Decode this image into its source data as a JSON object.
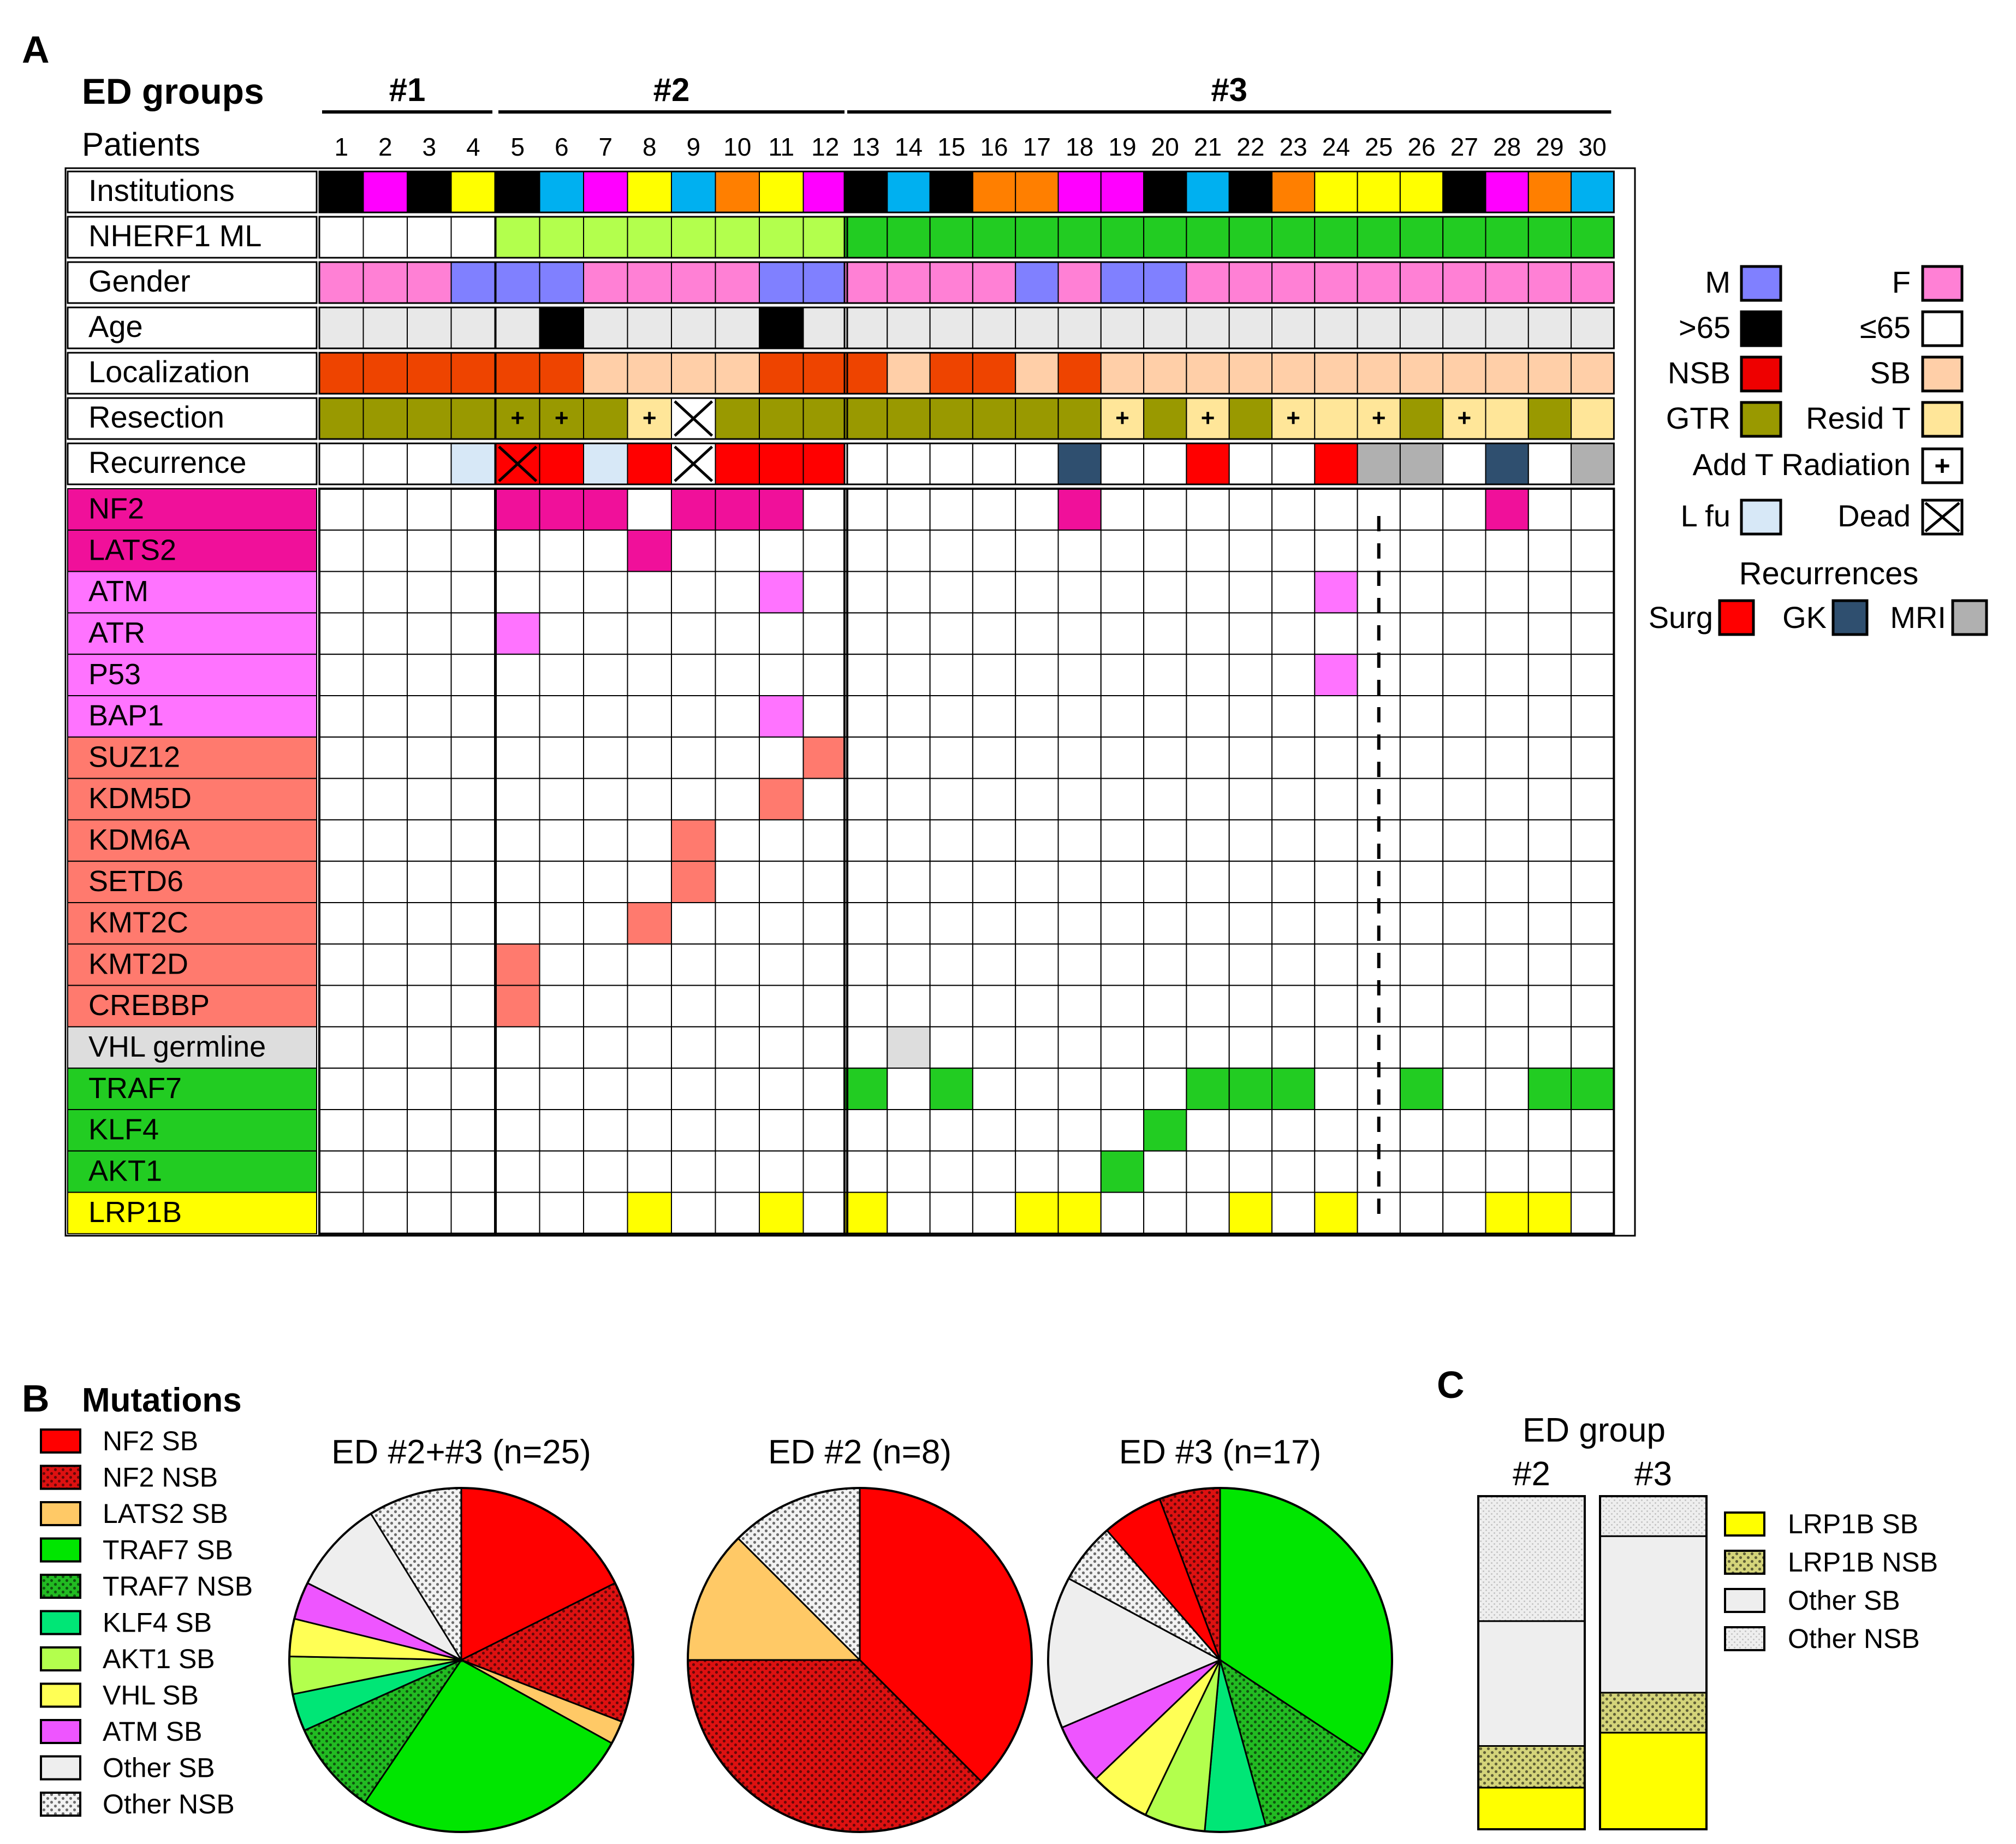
{
  "colors": {
    "black": "#000000",
    "magenta": "#ff00ff",
    "yellow": "#ffff00",
    "cyan": "#00b0f0",
    "orange": "#ff7f00",
    "white": "#ffffff",
    "nherf_light": "#b3ff4d",
    "nherf_green": "#22cc22",
    "male": "#8080ff",
    "female": "#ff80d5",
    "age_gt65": "#000000",
    "age_le65": "#e8e8e8",
    "nsb": "#ee4400",
    "sb": "#ffcfa8",
    "gtr": "#999900",
    "resid": "#ffe699",
    "lfu": "#d7e8f7",
    "surg": "#ff0000",
    "gk": "#2f4f6f",
    "mri": "#b0b0b0",
    "gene_hippo": "#f0109a",
    "gene_dna": "#ff73ff",
    "gene_chrom": "#ff7a6e",
    "gene_vhl": "#dddddd",
    "gene_traf": "#22cc22",
    "gene_lrp": "#ffff00",
    "legend_surg": "#ff0000",
    "legend_nsb": "#ee0000"
  },
  "panelA": {
    "label": "A",
    "ed_groups_title": "ED groups",
    "patients_title": "Patients",
    "groups": [
      {
        "name": "#1",
        "from": 1,
        "to": 4
      },
      {
        "name": "#2",
        "from": 5,
        "to": 12
      },
      {
        "name": "#3",
        "from": 13,
        "to": 30
      }
    ],
    "patients": [
      "1",
      "2",
      "3",
      "4",
      "5",
      "6",
      "7",
      "8",
      "9",
      "10",
      "11",
      "12",
      "13",
      "14",
      "15",
      "16",
      "17",
      "18",
      "19",
      "20",
      "21",
      "22",
      "23",
      "24",
      "25",
      "26",
      "27",
      "28",
      "29",
      "30"
    ],
    "rows": [
      {
        "label": "Institutions",
        "cells": [
          "black",
          "magenta",
          "black",
          "yellow",
          "black",
          "cyan",
          "magenta",
          "yellow",
          "cyan",
          "orange",
          "yellow",
          "magenta",
          "black",
          "cyan",
          "black",
          "orange",
          "orange",
          "magenta",
          "magenta",
          "black",
          "cyan",
          "black",
          "orange",
          "yellow",
          "yellow",
          "yellow",
          "black",
          "magenta",
          "orange",
          "cyan"
        ]
      },
      {
        "label": "NHERF1 ML",
        "cells": [
          "white",
          "white",
          "white",
          "white",
          "nherf_light",
          "nherf_light",
          "nherf_light",
          "nherf_light",
          "nherf_light",
          "nherf_light",
          "nherf_light",
          "nherf_light",
          "nherf_green",
          "nherf_green",
          "nherf_green",
          "nherf_green",
          "nherf_green",
          "nherf_green",
          "nherf_green",
          "nherf_green",
          "nherf_green",
          "nherf_green",
          "nherf_green",
          "nherf_green",
          "nherf_green",
          "nherf_green",
          "nherf_green",
          "nherf_green",
          "nherf_green",
          "nherf_green"
        ]
      },
      {
        "label": "Gender",
        "cells": [
          "female",
          "female",
          "female",
          "male",
          "male",
          "male",
          "female",
          "female",
          "female",
          "female",
          "male",
          "male",
          "female",
          "female",
          "female",
          "female",
          "male",
          "female",
          "male",
          "male",
          "female",
          "female",
          "female",
          "female",
          "female",
          "female",
          "female",
          "female",
          "female",
          "female"
        ]
      },
      {
        "label": "Age",
        "cells": [
          "age_le65",
          "age_le65",
          "age_le65",
          "age_le65",
          "age_le65",
          "age_gt65",
          "age_le65",
          "age_le65",
          "age_le65",
          "age_le65",
          "age_gt65",
          "age_le65",
          "age_le65",
          "age_le65",
          "age_le65",
          "age_le65",
          "age_le65",
          "age_le65",
          "age_le65",
          "age_le65",
          "age_le65",
          "age_le65",
          "age_le65",
          "age_le65",
          "age_le65",
          "age_le65",
          "age_le65",
          "age_le65",
          "age_le65",
          "age_le65"
        ]
      },
      {
        "label": "Localization",
        "cells": [
          "nsb",
          "nsb",
          "nsb",
          "nsb",
          "nsb",
          "nsb",
          "sb",
          "sb",
          "sb",
          "sb",
          "nsb",
          "nsb",
          "nsb",
          "sb",
          "nsb",
          "nsb",
          "sb",
          "nsb",
          "sb",
          "sb",
          "sb",
          "sb",
          "sb",
          "sb",
          "sb",
          "sb",
          "sb",
          "sb",
          "sb",
          "sb"
        ]
      },
      {
        "label": "Resection",
        "cells": [
          "gtr",
          "gtr",
          "gtr",
          "gtr",
          "gtr",
          "gtr",
          "gtr",
          "resid",
          "white",
          "gtr",
          "gtr",
          "gtr",
          "gtr",
          "gtr",
          "gtr",
          "gtr",
          "gtr",
          "gtr",
          "resid",
          "gtr",
          "resid",
          "gtr",
          "resid",
          "resid",
          "resid",
          "gtr",
          "resid",
          "resid",
          "gtr",
          "resid"
        ],
        "plus": [
          5,
          6,
          8,
          19,
          21,
          23,
          25,
          27
        ],
        "dead": [
          9
        ]
      },
      {
        "label": "Recurrence",
        "cells": [
          "white",
          "white",
          "white",
          "lfu",
          "surg",
          "surg",
          "lfu",
          "surg",
          "white",
          "surg",
          "surg",
          "surg",
          "white",
          "white",
          "white",
          "white",
          "white",
          "gk",
          "white",
          "white",
          "surg",
          "white",
          "white",
          "surg",
          "mri",
          "mri",
          "white",
          "gk",
          "white",
          "mri"
        ],
        "dead": [
          5,
          9
        ]
      }
    ],
    "genes": [
      {
        "label": "NF2",
        "color": "gene_hippo",
        "mut": [
          5,
          6,
          7,
          9,
          10,
          11,
          18,
          28
        ]
      },
      {
        "label": "LATS2",
        "color": "gene_hippo",
        "mut": [
          8
        ]
      },
      {
        "label": "ATM",
        "color": "gene_dna",
        "mut": [
          11,
          24
        ]
      },
      {
        "label": "ATR",
        "color": "gene_dna",
        "mut": [
          5
        ]
      },
      {
        "label": "P53",
        "color": "gene_dna",
        "mut": [
          24
        ]
      },
      {
        "label": "BAP1",
        "color": "gene_dna",
        "mut": [
          11
        ]
      },
      {
        "label": "SUZ12",
        "color": "gene_chrom",
        "mut": [
          12
        ]
      },
      {
        "label": "KDM5D",
        "color": "gene_chrom",
        "mut": [
          11
        ]
      },
      {
        "label": "KDM6A",
        "color": "gene_chrom",
        "mut": [
          9
        ]
      },
      {
        "label": "SETD6",
        "color": "gene_chrom",
        "mut": [
          9
        ]
      },
      {
        "label": "KMT2C",
        "color": "gene_chrom",
        "mut": [
          8
        ]
      },
      {
        "label": "KMT2D",
        "color": "gene_chrom",
        "mut": [
          5
        ]
      },
      {
        "label": "CREBBP",
        "color": "gene_chrom",
        "mut": [
          5
        ]
      },
      {
        "label": "VHL germline",
        "color": "gene_vhl",
        "mut": [
          14
        ]
      },
      {
        "label": "TRAF7",
        "color": "gene_traf",
        "mut": [
          13,
          15,
          21,
          22,
          23,
          26,
          29,
          30
        ]
      },
      {
        "label": "KLF4",
        "color": "gene_traf",
        "mut": [
          20
        ]
      },
      {
        "label": "AKT1",
        "color": "gene_traf",
        "mut": [
          19
        ]
      },
      {
        "label": "LRP1B",
        "color": "gene_lrp",
        "mut": [
          8,
          11,
          13,
          17,
          18,
          22,
          24,
          28,
          29
        ]
      }
    ],
    "legend": {
      "pairs": [
        {
          "l": "M",
          "lc": "male",
          "r": "F",
          "rc": "female"
        },
        {
          "l": ">65",
          "lc": "age_gt65",
          "r": "≤65",
          "rc": "white"
        },
        {
          "l": "NSB",
          "lc": "legend_nsb",
          "r": "SB",
          "rc": "sb"
        },
        {
          "l": "GTR",
          "lc": "gtr",
          "r": "Resid T",
          "rc": "resid"
        }
      ],
      "add_t_radiation": "Add T Radiation",
      "lfu": "L fu",
      "dead": "Dead",
      "recurrences_title": "Recurrences",
      "surg": "Surg",
      "gk": "GK",
      "mri": "MRI"
    }
  },
  "chart_data": [
    {
      "type": "pie",
      "panel": "B",
      "title": "ED #2+#3 (n=25)",
      "legend_title": "Mutations",
      "slices": [
        {
          "name": "NF2 SB",
          "value": 4
        },
        {
          "name": "NF2 NSB",
          "value": 3
        },
        {
          "name": "LATS2 SB",
          "value": 0.5
        },
        {
          "name": "TRAF7 SB",
          "value": 6
        },
        {
          "name": "TRAF7 NSB",
          "value": 2
        },
        {
          "name": "KLF4 SB",
          "value": 0.8
        },
        {
          "name": "AKT1 SB",
          "value": 0.8
        },
        {
          "name": "VHL SB",
          "value": 0.8
        },
        {
          "name": "ATM SB",
          "value": 0.8
        },
        {
          "name": "Other SB",
          "value": 2
        },
        {
          "name": "Other NSB",
          "value": 2
        }
      ]
    },
    {
      "type": "pie",
      "panel": "B",
      "title": "ED #2 (n=8)",
      "slices": [
        {
          "name": "NF2 SB",
          "value": 3
        },
        {
          "name": "NF2 NSB",
          "value": 3
        },
        {
          "name": "LATS2 SB",
          "value": 1
        },
        {
          "name": "Other NSB",
          "value": 1
        }
      ]
    },
    {
      "type": "pie",
      "panel": "B",
      "title": "ED #3 (n=17)",
      "slices": [
        {
          "name": "TRAF7 SB",
          "value": 6
        },
        {
          "name": "TRAF7 NSB",
          "value": 2
        },
        {
          "name": "KLF4 SB",
          "value": 1
        },
        {
          "name": "AKT1 SB",
          "value": 1
        },
        {
          "name": "VHL SB",
          "value": 1
        },
        {
          "name": "ATM SB",
          "value": 1
        },
        {
          "name": "Other SB",
          "value": 2.5
        },
        {
          "name": "Other NSB",
          "value": 1
        },
        {
          "name": "NF2 SB",
          "value": 1
        },
        {
          "name": "NF2 NSB",
          "value": 1
        }
      ]
    },
    {
      "type": "bar",
      "panel": "C",
      "title": "ED group",
      "categories": [
        "#2",
        "#3"
      ],
      "stacked": true,
      "ylim": [
        0,
        100
      ],
      "series": [
        {
          "name": "LRP1B SB",
          "values": [
            12.5,
            29
          ]
        },
        {
          "name": "LRP1B NSB",
          "values": [
            12.5,
            12
          ]
        },
        {
          "name": "Other SB",
          "values": [
            37.5,
            47
          ]
        },
        {
          "name": "Other NSB",
          "values": [
            37.5,
            12
          ]
        }
      ]
    }
  ],
  "panelB": {
    "label": "B",
    "legend": [
      {
        "name": "NF2 SB",
        "fill": "#ff0000",
        "pattern": "none"
      },
      {
        "name": "NF2 NSB",
        "fill": "#dd1111",
        "pattern": "dots"
      },
      {
        "name": "LATS2 SB",
        "fill": "#ffc966",
        "pattern": "none"
      },
      {
        "name": "TRAF7 SB",
        "fill": "#00e600",
        "pattern": "none"
      },
      {
        "name": "TRAF7 NSB",
        "fill": "#22bb22",
        "pattern": "dots"
      },
      {
        "name": "KLF4 SB",
        "fill": "#00e676",
        "pattern": "none"
      },
      {
        "name": "AKT1 SB",
        "fill": "#b3ff4d",
        "pattern": "none"
      },
      {
        "name": "VHL SB",
        "fill": "#ffff55",
        "pattern": "none"
      },
      {
        "name": "ATM SB",
        "fill": "#ee55ff",
        "pattern": "none"
      },
      {
        "name": "Other SB",
        "fill": "#eeeeee",
        "pattern": "none"
      },
      {
        "name": "Other NSB",
        "fill": "#f2f2f2",
        "pattern": "dots"
      }
    ]
  },
  "panelC": {
    "label": "C",
    "legend": [
      {
        "name": "LRP1B SB",
        "fill": "#ffff00",
        "pattern": "none"
      },
      {
        "name": "LRP1B NSB",
        "fill": "#d4d47a",
        "pattern": "dots"
      },
      {
        "name": "Other SB",
        "fill": "#eeeeee",
        "pattern": "none"
      },
      {
        "name": "Other NSB",
        "fill": "#eeeeee",
        "pattern": "light"
      }
    ]
  }
}
